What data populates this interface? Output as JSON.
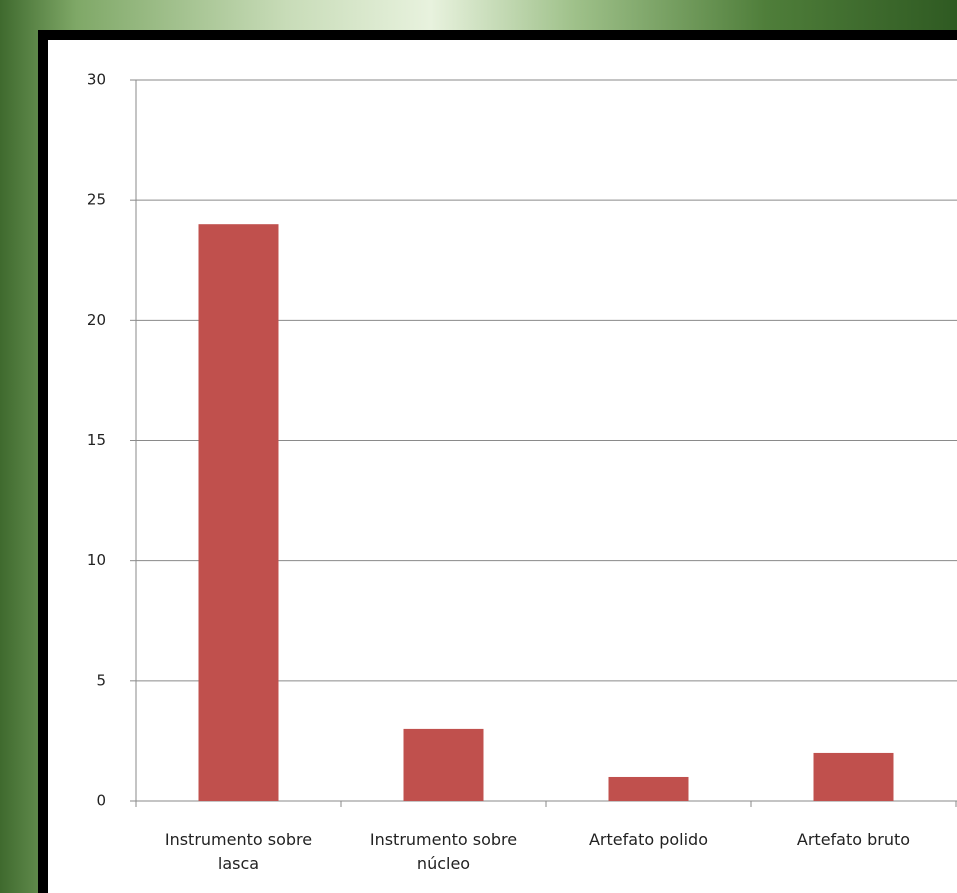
{
  "chart_data": {
    "type": "bar",
    "categories": [
      "Instrumento sobre lasca",
      "Instrumento sobre núcleo",
      "Artefato polido",
      "Artefato bruto"
    ],
    "values": [
      24,
      3,
      1,
      2
    ],
    "color": "#c0504d",
    "ylim": [
      0,
      30
    ],
    "yticks": [
      0,
      5,
      10,
      15,
      20,
      25,
      30
    ],
    "grid": true
  }
}
